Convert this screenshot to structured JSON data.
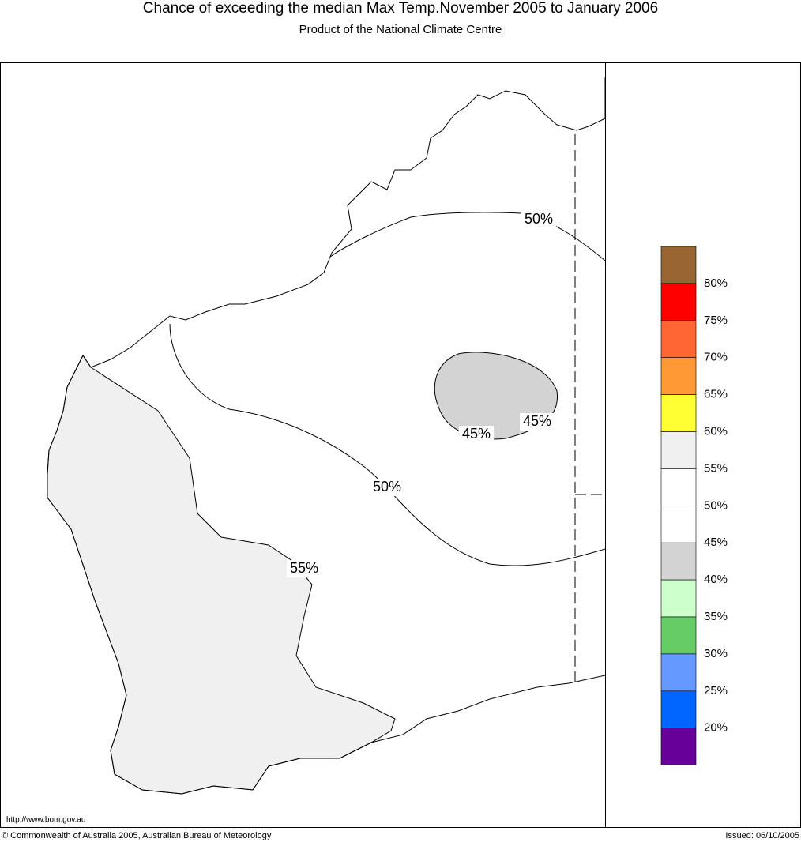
{
  "header": {
    "title": "Chance of exceeding the median Max Temp.November 2005 to January 2006",
    "subtitle": "Product of the National Climate Centre"
  },
  "contour_labels": [
    "50%",
    "50%",
    "55%",
    "45%",
    "45%"
  ],
  "legend": {
    "colors": [
      "#996633",
      "#ff0000",
      "#ff6633",
      "#ff9933",
      "#ffff33",
      "#f0f0f0",
      "#ffffff",
      "#ffffff",
      "#d3d3d3",
      "#ccffcc",
      "#66cc66",
      "#6699ff",
      "#0066ff",
      "#660099"
    ],
    "labels": [
      "80%",
      "75%",
      "70%",
      "65%",
      "60%",
      "55%",
      "50%",
      "45%",
      "40%",
      "35%",
      "30%",
      "25%",
      "20%"
    ]
  },
  "footer": {
    "url": "http://www.bom.gov.au",
    "copyright": "© Commonwealth of Australia 2005, Australian Bureau of Meteorology",
    "issued": "Issued: 06/10/2005"
  }
}
